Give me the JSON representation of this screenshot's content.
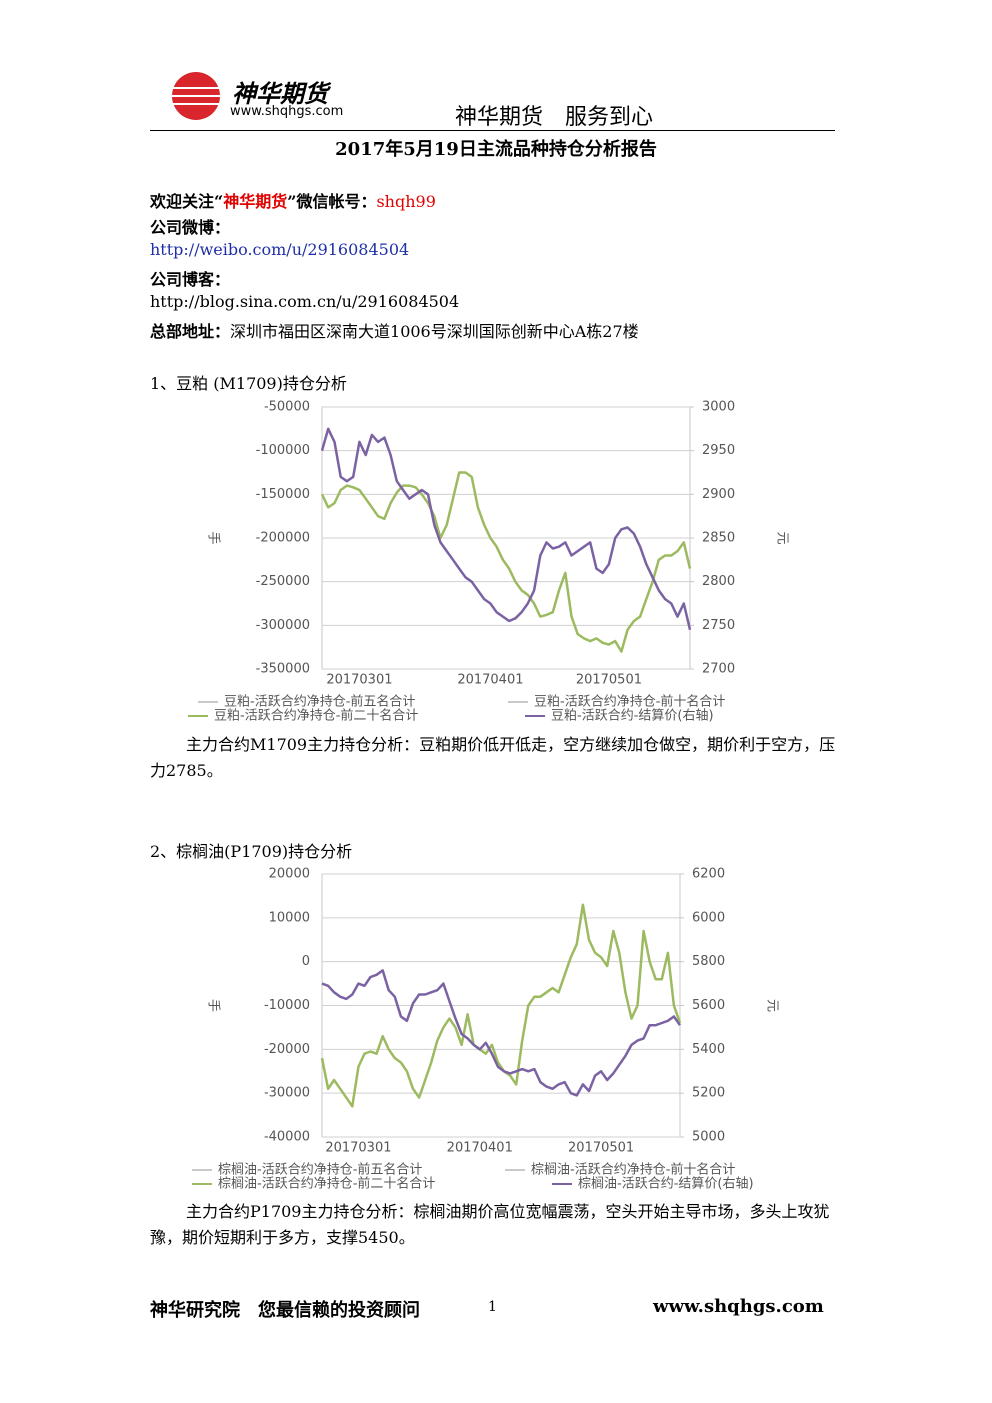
{
  "header": {
    "logo": "神华期货",
    "site": "www.shqhgs.com",
    "slogan": "神华期货　服务到心"
  },
  "title": "2017年5月19日主流品种持仓分析报告",
  "contact": {
    "wechat_prefix": "欢迎关注“",
    "wechat_name": "神华期货",
    "wechat_middle": "”微信帐号：",
    "wechat_account": "shqh99",
    "weibo_label": "公司微博：",
    "weibo_url": "http://weibo.com/u/2916084504",
    "blog_label": "公司博客：",
    "blog_url": "http://blog.sina.com.cn/u/2916084504",
    "address_label": "总部地址：",
    "address": "深圳市福田区深南大道1006号深圳国际创新中心A栋27楼"
  },
  "sections": [
    {
      "heading": "1、豆粕 (M1709)持仓分析",
      "analysis": "主力合约M1709主力持仓分析：豆粕期价低开低走，空方继续加仓做空，期价利于空方，压力2785。"
    },
    {
      "heading": "2、棕榈油(P1709)持仓分析",
      "analysis": "主力合约P1709主力持仓分析：棕榈油期价高位宽幅震荡，空头开始主导市场，多头上攻犹豫，期价短期利于多方，支撑5450。"
    }
  ],
  "footer": {
    "left": "神华研究院　您最信赖的投资顾问",
    "page": "1",
    "right": "www.shqhgs.com"
  },
  "chart_data": [
    {
      "type": "line",
      "ylabel": "手",
      "y2label": "元",
      "categories": [
        null,
        null,
        null,
        null,
        null,
        null,
        "20170301",
        null,
        null,
        null,
        null,
        null,
        null,
        null,
        null,
        null,
        null,
        null,
        null,
        null,
        null,
        null,
        null,
        null,
        null,
        null,
        null,
        "20170401",
        null,
        null,
        null,
        null,
        null,
        null,
        null,
        null,
        null,
        null,
        null,
        null,
        null,
        null,
        null,
        null,
        null,
        null,
        "20170501",
        null,
        null,
        null,
        null,
        null,
        null,
        null,
        null,
        null,
        null,
        null,
        null,
        null
      ],
      "ylim": [
        -350000,
        -50000
      ],
      "yticks": [
        -50000,
        -100000,
        -150000,
        -200000,
        -250000,
        -300000,
        -350000
      ],
      "y2lim": [
        2700,
        3000
      ],
      "y2ticks": [
        3000,
        2950,
        2900,
        2850,
        2800,
        2750,
        2700
      ],
      "grid": true,
      "series": [
        {
          "name": "豆粕-活跃合约净持仓-前五名合计",
          "color": "#c9c9c9",
          "values": [
            null,
            null,
            null,
            null,
            null,
            null,
            null,
            null,
            null,
            null,
            null,
            null,
            null,
            null,
            null,
            null,
            null,
            null,
            null,
            null,
            null,
            null,
            null,
            null,
            null,
            null,
            null,
            null,
            null,
            null,
            null,
            null,
            null,
            null,
            null,
            null,
            null,
            null,
            null,
            null,
            null,
            null,
            null,
            null,
            null,
            null,
            null,
            null,
            null,
            null,
            null,
            null,
            null,
            null,
            null,
            null,
            null,
            null,
            null,
            null
          ]
        },
        {
          "name": "豆粕-活跃合约净持仓-前十名合计",
          "color": "#c9c9c9",
          "values": [
            null,
            null,
            null,
            null,
            null,
            null,
            null,
            null,
            null,
            null,
            null,
            null,
            null,
            null,
            null,
            null,
            null,
            null,
            null,
            null,
            null,
            null,
            null,
            null,
            null,
            null,
            null,
            null,
            null,
            null,
            null,
            null,
            null,
            null,
            null,
            null,
            null,
            null,
            null,
            null,
            null,
            null,
            null,
            null,
            null,
            null,
            null,
            null,
            null,
            null,
            null,
            null,
            null,
            null,
            null,
            null,
            null,
            null,
            null,
            null
          ]
        },
        {
          "name": "豆粕-活跃合约净持仓-前二十名合计",
          "color": "#9cba5f",
          "values": [
            -150000,
            -165000,
            -160000,
            -145000,
            -140000,
            -142000,
            -145000,
            -155000,
            -165000,
            -175000,
            -178000,
            -160000,
            -148000,
            -140000,
            -140000,
            -142000,
            -150000,
            -160000,
            -175000,
            -200000,
            -185000,
            -155000,
            -125000,
            -125000,
            -130000,
            -165000,
            -185000,
            -200000,
            -210000,
            -225000,
            -235000,
            -250000,
            -260000,
            -265000,
            -275000,
            -290000,
            -288000,
            -285000,
            -260000,
            -240000,
            -290000,
            -310000,
            -315000,
            -318000,
            -315000,
            -320000,
            -322000,
            -318000,
            -330000,
            -305000,
            -295000,
            -290000,
            -270000,
            -250000,
            -225000,
            -220000,
            -220000,
            -215000,
            -205000,
            -235000
          ]
        },
        {
          "name": "豆粕-活跃合约-结算价(右轴)",
          "color": "#7b62a3",
          "axis": "y2",
          "values": [
            2950,
            2975,
            2960,
            2920,
            2915,
            2920,
            2960,
            2945,
            2968,
            2960,
            2965,
            2945,
            2915,
            2905,
            2895,
            2900,
            2905,
            2900,
            2865,
            2845,
            2835,
            2825,
            2815,
            2805,
            2800,
            2790,
            2780,
            2775,
            2765,
            2760,
            2755,
            2758,
            2765,
            2775,
            2790,
            2830,
            2845,
            2838,
            2840,
            2845,
            2830,
            2835,
            2840,
            2845,
            2815,
            2810,
            2820,
            2850,
            2860,
            2862,
            2855,
            2840,
            2820,
            2805,
            2790,
            2780,
            2775,
            2760,
            2775,
            2745
          ]
        }
      ]
    },
    {
      "type": "line",
      "ylabel": "手",
      "y2label": "元",
      "categories": [
        null,
        null,
        null,
        null,
        null,
        null,
        "20170301",
        null,
        null,
        null,
        null,
        null,
        null,
        null,
        null,
        null,
        null,
        null,
        null,
        null,
        null,
        null,
        null,
        null,
        null,
        null,
        "20170401",
        null,
        null,
        null,
        null,
        null,
        null,
        null,
        null,
        null,
        null,
        null,
        null,
        null,
        null,
        null,
        null,
        null,
        null,
        null,
        "20170501",
        null,
        null,
        null,
        null,
        null,
        null,
        null,
        null,
        null,
        null,
        null,
        null,
        null
      ],
      "ylim": [
        -40000,
        20000
      ],
      "yticks": [
        20000,
        10000,
        0,
        -10000,
        -20000,
        -30000,
        -40000
      ],
      "y2lim": [
        5000,
        6200
      ],
      "y2ticks": [
        6200,
        6000,
        5800,
        5600,
        5400,
        5200,
        5000
      ],
      "grid": true,
      "series": [
        {
          "name": "棕榈油-活跃合约净持仓-前五名合计",
          "color": "#c9c9c9",
          "values": [
            null,
            null,
            null,
            null,
            null,
            null,
            null,
            null,
            null,
            null,
            null,
            null,
            null,
            null,
            null,
            null,
            null,
            null,
            null,
            null,
            null,
            null,
            null,
            null,
            null,
            null,
            null,
            null,
            null,
            null,
            null,
            null,
            null,
            null,
            null,
            null,
            null,
            null,
            null,
            null,
            null,
            null,
            null,
            null,
            null,
            null,
            null,
            null,
            null,
            null,
            null,
            null,
            null,
            null,
            null,
            null,
            null,
            null,
            null,
            null
          ]
        },
        {
          "name": "棕榈油-活跃合约净持仓-前十名合计",
          "color": "#c9c9c9",
          "values": [
            null,
            null,
            null,
            null,
            null,
            null,
            null,
            null,
            null,
            null,
            null,
            null,
            null,
            null,
            null,
            null,
            null,
            null,
            null,
            null,
            null,
            null,
            null,
            null,
            null,
            null,
            null,
            null,
            null,
            null,
            null,
            null,
            null,
            null,
            null,
            null,
            null,
            null,
            null,
            null,
            null,
            null,
            null,
            null,
            null,
            null,
            null,
            null,
            null,
            null,
            null,
            null,
            null,
            null,
            null,
            null,
            null,
            null,
            null,
            null
          ]
        },
        {
          "name": "棕榈油-活跃合约净持仓-前二十名合计",
          "color": "#9cba5f",
          "values": [
            -22000,
            -29000,
            -27000,
            -29000,
            -31000,
            -33000,
            -24000,
            -21000,
            -20500,
            -21000,
            -17000,
            -20000,
            -22000,
            -23000,
            -25000,
            -29000,
            -31000,
            -27000,
            -23000,
            -18000,
            -15000,
            -13000,
            -15000,
            -19000,
            -12000,
            -19000,
            -20000,
            -21000,
            -19000,
            -23000,
            -25000,
            -26000,
            -28000,
            -18000,
            -10000,
            -8000,
            -8000,
            -7000,
            -6000,
            -7000,
            -3000,
            1000,
            4000,
            13000,
            5000,
            2000,
            1000,
            -1000,
            7000,
            2000,
            -7000,
            -13000,
            -10000,
            7000,
            0,
            -4000,
            -4000,
            2000,
            -10000,
            -14000
          ]
        },
        {
          "name": "棕榈油-活跃合约-结算价(右轴)",
          "color": "#7b62a3",
          "axis": "y2",
          "values": [
            5700,
            5690,
            5660,
            5640,
            5630,
            5650,
            5700,
            5690,
            5730,
            5740,
            5760,
            5670,
            5640,
            5550,
            5530,
            5610,
            5650,
            5650,
            5660,
            5670,
            5700,
            5620,
            5540,
            5470,
            5450,
            5420,
            5400,
            5430,
            5380,
            5320,
            5300,
            5290,
            5300,
            5310,
            5300,
            5310,
            5250,
            5230,
            5220,
            5240,
            5250,
            5200,
            5190,
            5240,
            5210,
            5280,
            5300,
            5260,
            5290,
            5330,
            5370,
            5420,
            5440,
            5450,
            5510,
            5510,
            5520,
            5530,
            5550,
            5510
          ]
        }
      ]
    }
  ]
}
